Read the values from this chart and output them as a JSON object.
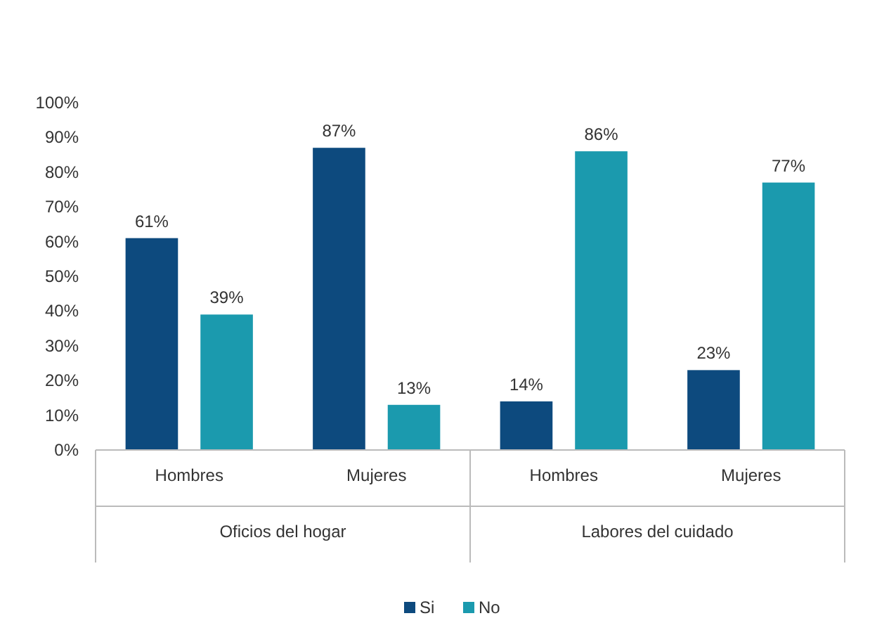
{
  "chart_data": {
    "type": "bar",
    "categories": [
      "Hombres",
      "Mujeres",
      "Hombres",
      "Mujeres"
    ],
    "annotations": [
      "Oficios del hogar",
      "Labores del cuidado"
    ],
    "series": [
      {
        "name": "Si",
        "color": "#0d4a7e",
        "values": [
          61,
          87,
          14,
          23
        ],
        "value_labels": [
          "61%",
          "87%",
          "14%",
          "23%"
        ]
      },
      {
        "name": "No",
        "color": "#1b9aae",
        "values": [
          39,
          13,
          86,
          77
        ],
        "value_labels": [
          "39%",
          "13%",
          "86%",
          "77%"
        ]
      }
    ],
    "ylim": [
      0,
      100
    ],
    "yticks": [
      {
        "value": 0,
        "label": "0%"
      },
      {
        "value": 10,
        "label": "10%"
      },
      {
        "value": 20,
        "label": "20%"
      },
      {
        "value": 30,
        "label": "30%"
      },
      {
        "value": 40,
        "label": "40%"
      },
      {
        "value": 50,
        "label": "50%"
      },
      {
        "value": 60,
        "label": "60%"
      },
      {
        "value": 70,
        "label": "70%"
      },
      {
        "value": 80,
        "label": "80%"
      },
      {
        "value": 90,
        "label": "90%"
      },
      {
        "value": 100,
        "label": "100%"
      }
    ],
    "legend": "bottom"
  }
}
